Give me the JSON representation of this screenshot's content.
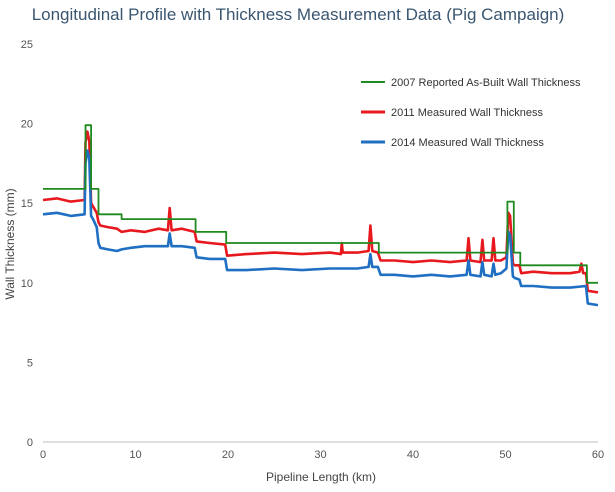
{
  "chart_data": {
    "type": "line",
    "title": "Longitudinal Profile with Thickness Measurement Data (Pig Campaign)",
    "xlabel": "Pipeline Length (km)",
    "ylabel": "Wall Thickness (mm)",
    "xlim": [
      0,
      60
    ],
    "ylim": [
      0,
      25
    ],
    "xticks": [
      0,
      10,
      20,
      30,
      40,
      50,
      60
    ],
    "yticks": [
      0,
      5,
      10,
      15,
      20,
      25
    ],
    "grid": false,
    "legend_position": "top-right",
    "series": [
      {
        "name": "2007 Reported As-Built Wall Thickness",
        "color": "#1f8a1f",
        "step": true,
        "x": [
          0,
          4.6,
          4.6,
          5.2,
          5.2,
          6.0,
          6.0,
          8.5,
          8.5,
          16.5,
          16.5,
          19.8,
          19.8,
          36.3,
          36.3,
          50.2,
          50.2,
          50.9,
          50.9,
          51.6,
          51.6,
          58.8,
          58.8,
          60
        ],
        "y": [
          15.9,
          15.9,
          19.9,
          19.9,
          15.9,
          15.9,
          14.3,
          14.3,
          14.0,
          14.0,
          13.2,
          13.2,
          12.5,
          12.5,
          11.9,
          11.9,
          15.1,
          15.1,
          11.9,
          11.9,
          11.1,
          11.1,
          10.0,
          10.0
        ]
      },
      {
        "name": "2011 Measured Wall Thickness",
        "color": "#e8191e",
        "step": false,
        "x": [
          0,
          1.5,
          3.0,
          4.5,
          4.6,
          4.8,
          5.0,
          5.2,
          5.4,
          5.8,
          6.0,
          6.2,
          7.0,
          8.0,
          8.5,
          9.5,
          11.0,
          12.5,
          13.5,
          13.7,
          13.9,
          15.0,
          16.4,
          16.6,
          18.0,
          19.7,
          19.9,
          22.0,
          25.0,
          28.0,
          31.0,
          32.2,
          32.3,
          32.4,
          34.0,
          35.2,
          35.4,
          35.6,
          36.2,
          36.5,
          38.0,
          40.0,
          42.0,
          44.0,
          45.8,
          46.0,
          46.2,
          47.3,
          47.5,
          47.7,
          48.5,
          48.7,
          48.9,
          49.5,
          50.1,
          50.3,
          50.5,
          50.8,
          51.0,
          51.5,
          51.7,
          53.0,
          55.0,
          57.0,
          58.0,
          58.2,
          58.4,
          58.7,
          58.9,
          60
        ],
        "y": [
          15.2,
          15.3,
          15.1,
          15.2,
          18.8,
          19.5,
          18.9,
          15.0,
          14.8,
          14.4,
          13.8,
          13.6,
          13.5,
          13.4,
          13.2,
          13.3,
          13.2,
          13.4,
          13.3,
          14.7,
          13.3,
          13.4,
          13.2,
          12.6,
          12.5,
          12.4,
          11.7,
          11.8,
          11.9,
          11.8,
          11.9,
          11.8,
          12.5,
          11.9,
          11.9,
          12.0,
          13.6,
          12.0,
          11.9,
          11.4,
          11.4,
          11.3,
          11.4,
          11.3,
          11.4,
          12.8,
          11.4,
          11.3,
          12.7,
          11.4,
          11.4,
          12.8,
          11.4,
          11.4,
          11.6,
          14.4,
          14.2,
          11.2,
          11.1,
          11.1,
          10.6,
          10.7,
          10.6,
          10.6,
          10.7,
          11.2,
          10.6,
          10.6,
          9.5,
          9.4
        ]
      },
      {
        "name": "2014 Measured Wall Thickness",
        "color": "#1f6fc2",
        "step": false,
        "x": [
          0,
          1.5,
          3.0,
          4.5,
          4.6,
          4.8,
          5.0,
          5.2,
          5.4,
          5.8,
          6.0,
          6.2,
          7.0,
          8.0,
          8.5,
          9.5,
          11.0,
          12.5,
          13.5,
          13.7,
          13.9,
          15.0,
          16.4,
          16.6,
          18.0,
          19.7,
          19.9,
          22.0,
          25.0,
          28.0,
          31.0,
          34.0,
          35.2,
          35.4,
          35.6,
          36.2,
          36.5,
          38.0,
          40.0,
          42.0,
          44.0,
          45.8,
          46.0,
          46.2,
          47.3,
          47.5,
          47.7,
          48.5,
          48.7,
          48.9,
          49.5,
          50.1,
          50.3,
          50.5,
          50.8,
          51.0,
          51.5,
          51.7,
          53.0,
          55.0,
          57.0,
          58.7,
          58.9,
          60
        ],
        "y": [
          14.3,
          14.4,
          14.2,
          14.3,
          17.5,
          18.3,
          17.8,
          14.2,
          14.0,
          13.5,
          12.5,
          12.2,
          12.1,
          12.0,
          12.1,
          12.2,
          12.3,
          12.3,
          12.3,
          13.1,
          12.3,
          12.3,
          12.2,
          11.6,
          11.5,
          11.5,
          10.8,
          10.8,
          10.9,
          10.8,
          10.9,
          10.9,
          11.0,
          11.8,
          11.0,
          11.0,
          10.5,
          10.5,
          10.4,
          10.5,
          10.4,
          10.5,
          11.4,
          10.5,
          10.4,
          11.3,
          10.5,
          10.4,
          11.2,
          10.5,
          10.6,
          10.9,
          13.2,
          13.0,
          10.4,
          10.3,
          10.2,
          9.8,
          9.8,
          9.7,
          9.7,
          9.8,
          8.7,
          8.6
        ]
      }
    ]
  }
}
